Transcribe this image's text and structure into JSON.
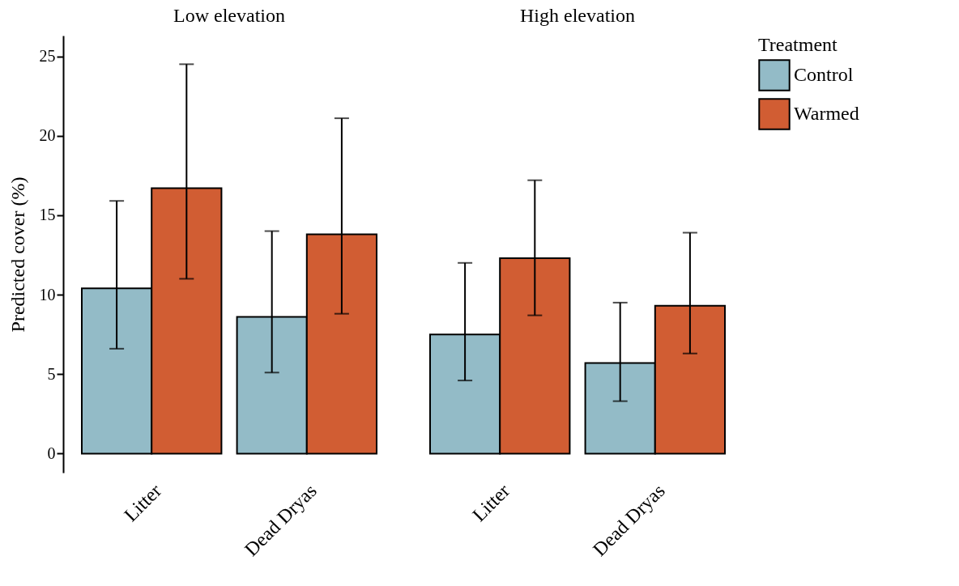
{
  "chart_data": [
    {
      "type": "bar",
      "title": "Low elevation",
      "ylabel": "Predicted cover (%)",
      "categories": [
        "Litter",
        "Dead Dryas"
      ],
      "ylim": [
        -1.2,
        26.3
      ],
      "yticks": [
        0,
        5,
        10,
        15,
        20,
        25
      ],
      "series": [
        {
          "color": "#93bbc7",
          "values": [
            10.4,
            8.6
          ],
          "errors": [
            [
              6.6,
              15.9
            ],
            [
              5.1,
              14.0
            ]
          ]
        },
        {
          "color": "#d15d33",
          "values": [
            16.7,
            13.8
          ],
          "errors": [
            [
              11.0,
              24.5
            ],
            [
              8.8,
              21.1
            ]
          ]
        }
      ]
    },
    {
      "type": "bar",
      "title": "High elevation",
      "categories": [
        "Litter",
        "Dead Dryas"
      ],
      "ylim": [
        0,
        25
      ],
      "yticks": [
        0,
        5,
        10,
        15,
        20,
        25
      ],
      "tick_labels": "x",
      "legend": "right",
      "legend_title": "Treatment",
      "series": [
        {
          "name": "Control",
          "color": "#93bbc7",
          "values": [
            7.5,
            5.7
          ],
          "errors": [
            [
              4.6,
              12.0
            ],
            [
              3.3,
              9.5
            ]
          ]
        },
        {
          "name": "Warmed",
          "color": "#d15d33",
          "values": [
            12.3,
            9.3
          ],
          "errors": [
            [
              8.7,
              17.2
            ],
            [
              6.3,
              13.9
            ]
          ]
        }
      ]
    }
  ]
}
